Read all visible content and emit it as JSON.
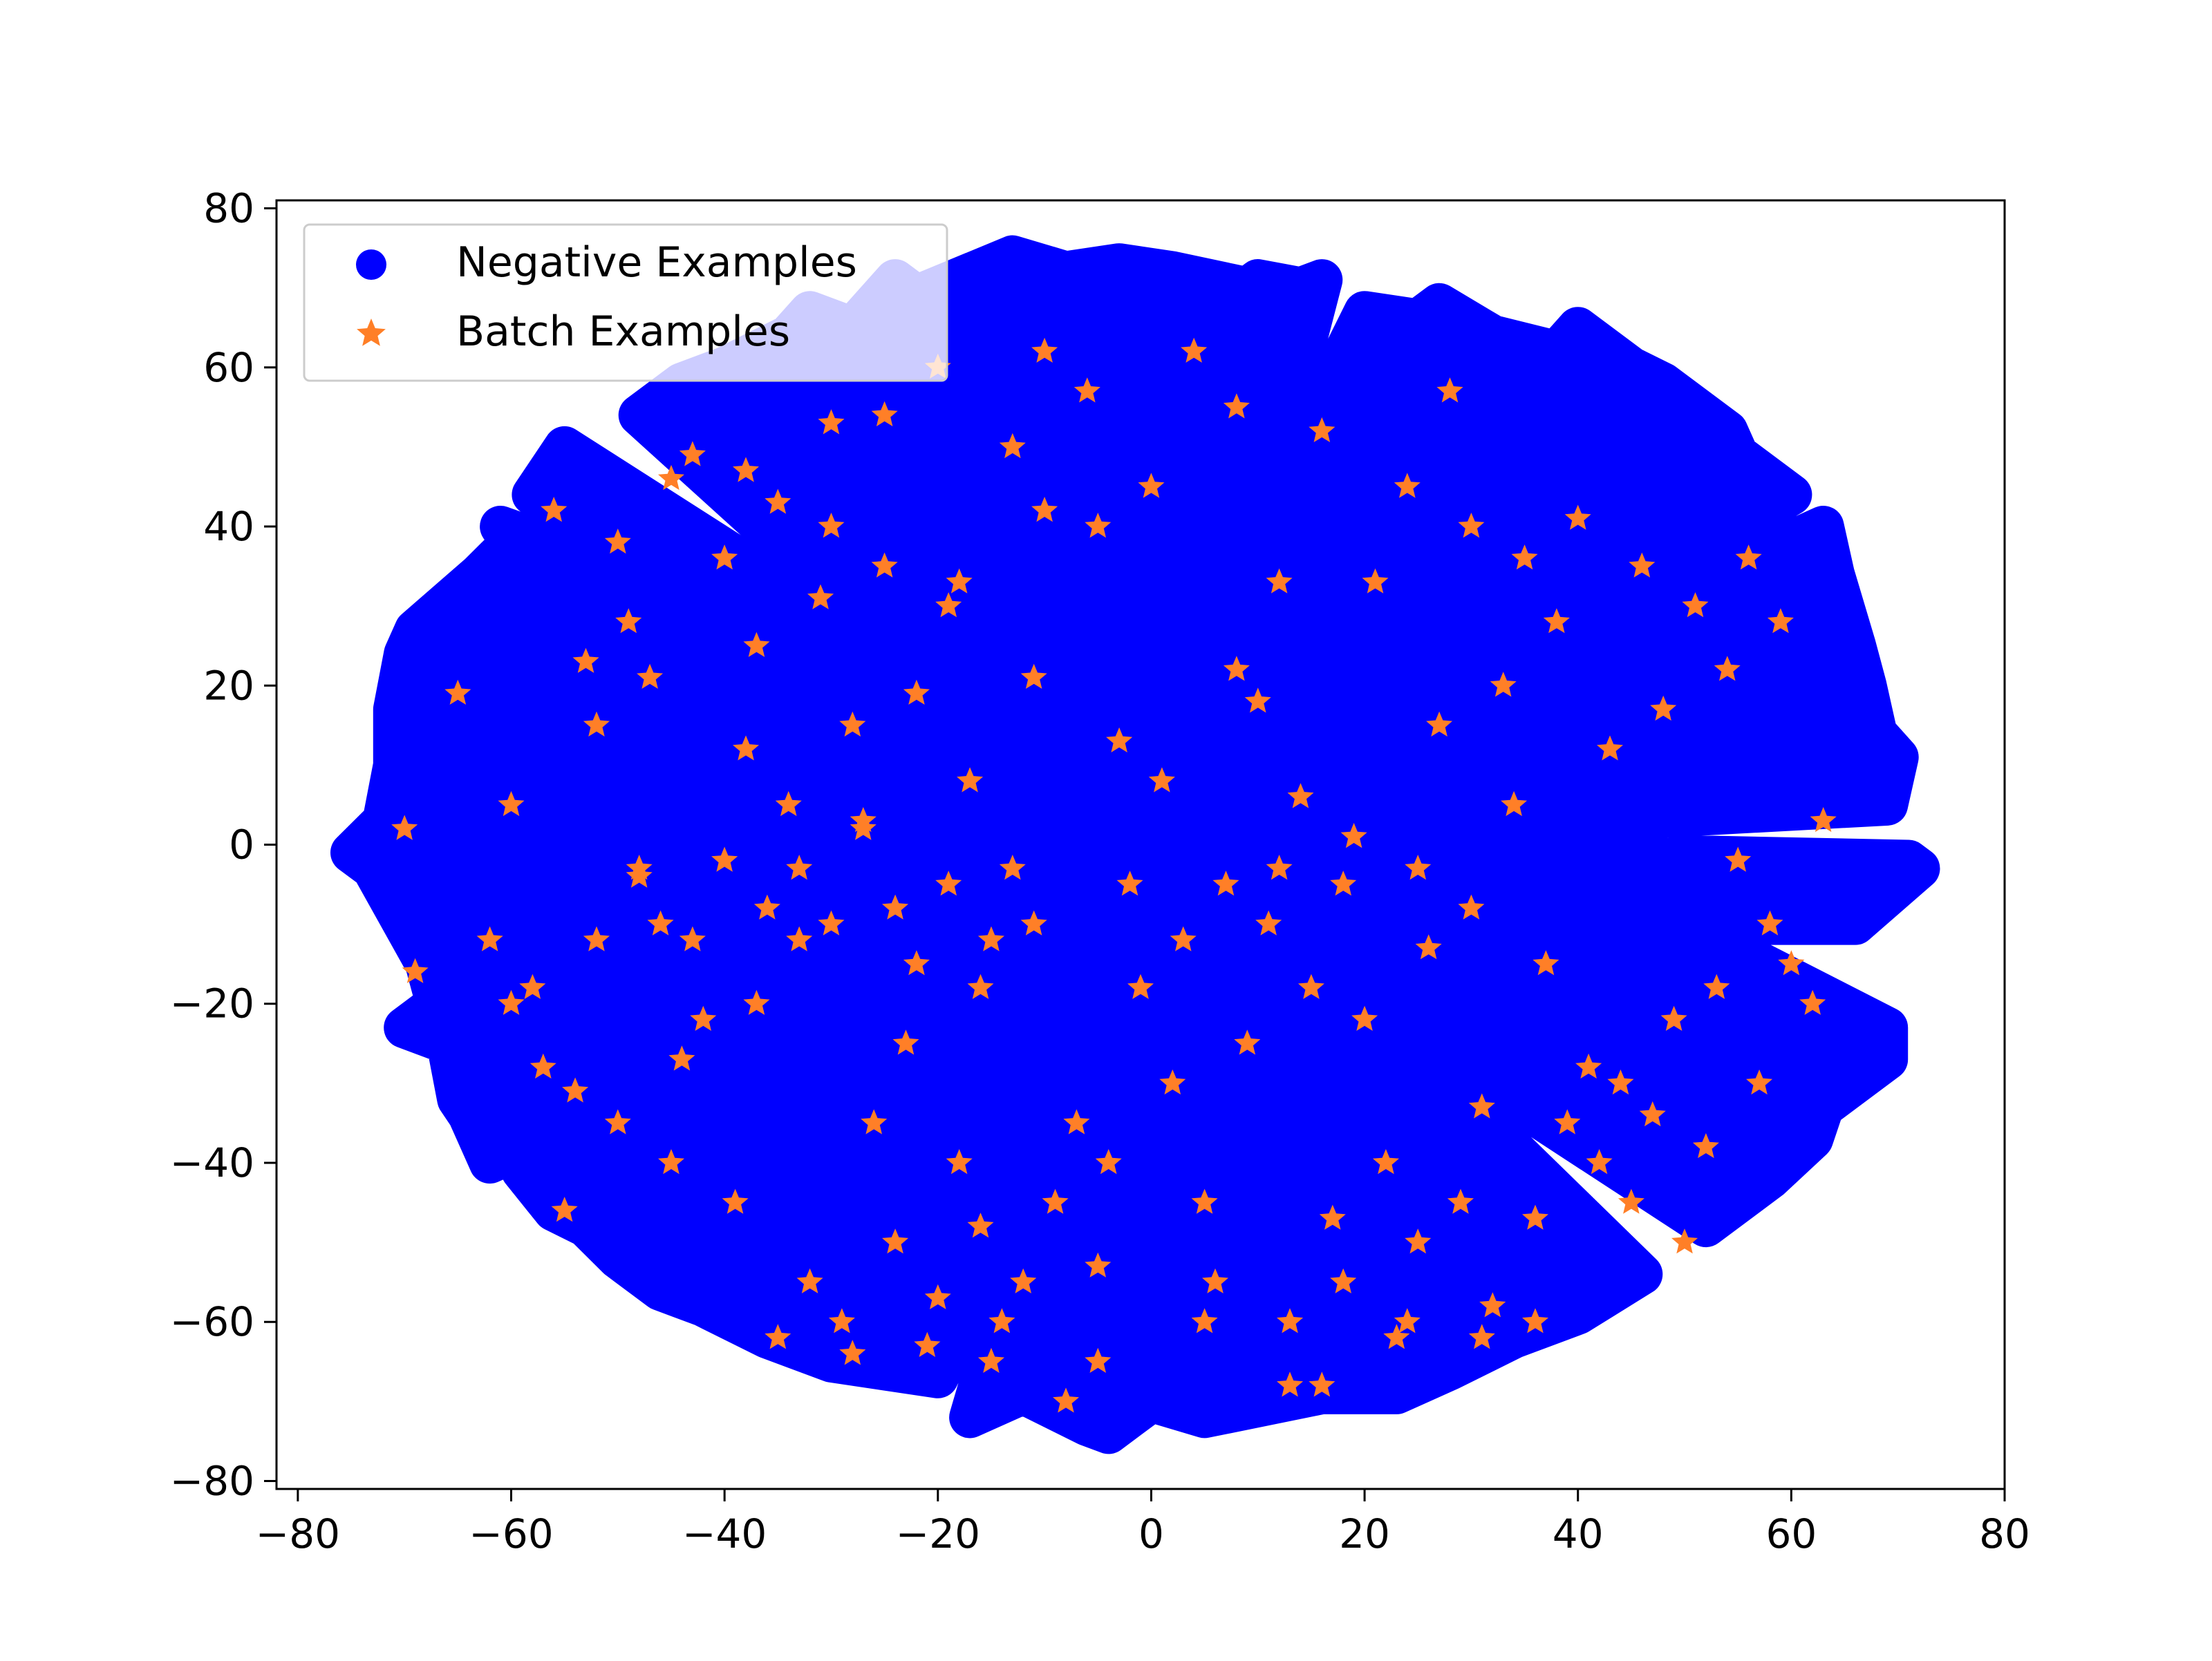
{
  "chart_data": {
    "type": "scatter",
    "title": "",
    "xlabel": "",
    "ylabel": "",
    "xlim": [
      -82,
      80
    ],
    "ylim": [
      -81,
      81
    ],
    "xticks": [
      -80,
      -60,
      -40,
      -20,
      0,
      20,
      40,
      60,
      80
    ],
    "yticks": [
      -80,
      -60,
      -40,
      -20,
      0,
      20,
      40,
      60,
      80
    ],
    "xtick_labels": [
      "−80",
      "−60",
      "−40",
      "−20",
      "0",
      "20",
      "40",
      "60",
      "80"
    ],
    "ytick_labels": [
      "−80",
      "−60",
      "−40",
      "−20",
      "0",
      "20",
      "40",
      "60",
      "80"
    ],
    "grid": false,
    "legend": {
      "position": "upper-left",
      "entries": [
        {
          "label": "Negative Examples",
          "marker": "circle",
          "color": "#0000ff"
        },
        {
          "label": "Batch Examples",
          "marker": "star",
          "color": "#ff7f27"
        }
      ]
    },
    "series": [
      {
        "name": "Negative Examples",
        "marker": "circle",
        "color": "#0000ff",
        "points": [
          [
            -75,
            -1
          ],
          [
            -74,
            -2
          ],
          [
            -73,
            -3
          ],
          [
            -72,
            3
          ],
          [
            -71,
            10
          ],
          [
            -71,
            17
          ],
          [
            -70,
            -23
          ],
          [
            -70,
            24
          ],
          [
            -69,
            27
          ],
          [
            -68,
            -15
          ],
          [
            -67,
            -20
          ],
          [
            -66,
            -25
          ],
          [
            -65,
            -32
          ],
          [
            -64,
            -34
          ],
          [
            -63,
            34
          ],
          [
            -62,
            -40
          ],
          [
            -61,
            40
          ],
          [
            -60,
            38
          ],
          [
            -59,
            -41
          ],
          [
            -58,
            44
          ],
          [
            -56,
            -46
          ],
          [
            -55,
            50
          ],
          [
            -53,
            -48
          ],
          [
            -50,
            -52
          ],
          [
            -48,
            54
          ],
          [
            -46,
            -56
          ],
          [
            -44,
            58
          ],
          [
            -42,
            -58
          ],
          [
            -40,
            60
          ],
          [
            -36,
            -62
          ],
          [
            -34,
            64
          ],
          [
            -32,
            67
          ],
          [
            -30,
            -65
          ],
          [
            -28,
            65
          ],
          [
            -24,
            71
          ],
          [
            -22,
            69
          ],
          [
            -20,
            -67
          ],
          [
            -17,
            -72
          ],
          [
            -13,
            74
          ],
          [
            -12,
            -69
          ],
          [
            -8,
            72
          ],
          [
            -6,
            -73
          ],
          [
            -4,
            -74
          ],
          [
            -3,
            73
          ],
          [
            0,
            -70
          ],
          [
            2,
            72
          ],
          [
            5,
            -72
          ],
          [
            9,
            70
          ],
          [
            10,
            71
          ],
          [
            14,
            70
          ],
          [
            16,
            71
          ],
          [
            20,
            67
          ],
          [
            23,
            -69
          ],
          [
            25,
            66
          ],
          [
            27,
            68
          ],
          [
            32,
            64
          ],
          [
            38,
            62
          ],
          [
            40,
            65
          ],
          [
            45,
            60
          ],
          [
            48,
            58
          ],
          [
            54,
            52
          ],
          [
            55,
            49
          ],
          [
            60,
            44
          ],
          [
            63,
            40
          ],
          [
            64,
            34
          ],
          [
            66,
            25
          ],
          [
            67,
            20
          ],
          [
            68,
            14
          ],
          [
            69,
            -23
          ],
          [
            69,
            -27
          ],
          [
            70,
            11
          ],
          [
            71,
            -2
          ],
          [
            72,
            -3
          ],
          [
            69,
            5
          ],
          [
            66,
            -10
          ],
          [
            63,
            -33
          ],
          [
            62,
            -37
          ],
          [
            58,
            -42
          ],
          [
            52,
            -48
          ],
          [
            46,
            -54
          ],
          [
            40,
            -59
          ],
          [
            34,
            -62
          ],
          [
            28,
            -66
          ],
          [
            16,
            -69
          ],
          [
            -45,
            -30
          ],
          [
            -30,
            -20
          ],
          [
            -20,
            20
          ],
          [
            0,
            0
          ],
          [
            20,
            -20
          ],
          [
            30,
            20
          ],
          [
            -10,
            -40
          ],
          [
            10,
            40
          ],
          [
            -40,
            30
          ],
          [
            50,
            -10
          ]
        ]
      },
      {
        "name": "Batch Examples",
        "marker": "star",
        "color": "#ff7f27",
        "points": [
          [
            -70,
            2
          ],
          [
            -69,
            -16
          ],
          [
            -65,
            19
          ],
          [
            -60,
            5
          ],
          [
            -58,
            -18
          ],
          [
            -55,
            -46
          ],
          [
            -54,
            -31
          ],
          [
            -53,
            23
          ],
          [
            -52,
            15
          ],
          [
            -50,
            -35
          ],
          [
            -49,
            28
          ],
          [
            -48,
            -4
          ],
          [
            -47,
            21
          ],
          [
            -46,
            -10
          ],
          [
            -45,
            -40
          ],
          [
            -44,
            -27
          ],
          [
            -43,
            49
          ],
          [
            -42,
            -22
          ],
          [
            -40,
            36
          ],
          [
            -39,
            -45
          ],
          [
            -38,
            12
          ],
          [
            -37,
            25
          ],
          [
            -36,
            -8
          ],
          [
            -35,
            43
          ],
          [
            -34,
            5
          ],
          [
            -33,
            -12
          ],
          [
            -32,
            -55
          ],
          [
            -31,
            31
          ],
          [
            -30,
            53
          ],
          [
            -29,
            -60
          ],
          [
            -28,
            15
          ],
          [
            -27,
            3
          ],
          [
            -26,
            -35
          ],
          [
            -25,
            54
          ],
          [
            -24,
            -50
          ],
          [
            -23,
            -25
          ],
          [
            -22,
            19
          ],
          [
            -21,
            -63
          ],
          [
            -20,
            60
          ],
          [
            -19,
            30
          ],
          [
            -18,
            -40
          ],
          [
            -17,
            8
          ],
          [
            -16,
            -48
          ],
          [
            -15,
            -12
          ],
          [
            -14,
            -60
          ],
          [
            -13,
            50
          ],
          [
            -12,
            -55
          ],
          [
            -11,
            21
          ],
          [
            -10,
            62
          ],
          [
            -9,
            -45
          ],
          [
            -8,
            -70
          ],
          [
            -7,
            -35
          ],
          [
            -6,
            57
          ],
          [
            -5,
            -53
          ],
          [
            -4,
            -40
          ],
          [
            -3,
            13
          ],
          [
            -2,
            -5
          ],
          [
            -1,
            -18
          ],
          [
            0,
            45
          ],
          [
            1,
            8
          ],
          [
            2,
            -30
          ],
          [
            3,
            -12
          ],
          [
            4,
            62
          ],
          [
            5,
            -45
          ],
          [
            6,
            -55
          ],
          [
            7,
            -5
          ],
          [
            8,
            22
          ],
          [
            9,
            -25
          ],
          [
            10,
            18
          ],
          [
            11,
            -10
          ],
          [
            12,
            33
          ],
          [
            13,
            -60
          ],
          [
            14,
            6
          ],
          [
            15,
            -18
          ],
          [
            16,
            52
          ],
          [
            17,
            -47
          ],
          [
            18,
            -55
          ],
          [
            19,
            1
          ],
          [
            20,
            -22
          ],
          [
            21,
            33
          ],
          [
            22,
            -40
          ],
          [
            23,
            -62
          ],
          [
            24,
            45
          ],
          [
            25,
            -50
          ],
          [
            26,
            -13
          ],
          [
            27,
            15
          ],
          [
            28,
            57
          ],
          [
            29,
            -45
          ],
          [
            30,
            40
          ],
          [
            31,
            -33
          ],
          [
            32,
            -58
          ],
          [
            33,
            20
          ],
          [
            34,
            5
          ],
          [
            35,
            36
          ],
          [
            36,
            -47
          ],
          [
            37,
            -15
          ],
          [
            38,
            28
          ],
          [
            39,
            -35
          ],
          [
            40,
            41
          ],
          [
            41,
            -28
          ],
          [
            42,
            -40
          ],
          [
            43,
            12
          ],
          [
            44,
            -30
          ],
          [
            45,
            -45
          ],
          [
            46,
            35
          ],
          [
            47,
            -34
          ],
          [
            48,
            17
          ],
          [
            49,
            -22
          ],
          [
            50,
            -50
          ],
          [
            51,
            30
          ],
          [
            52,
            -38
          ],
          [
            53,
            -18
          ],
          [
            54,
            22
          ],
          [
            55,
            -2
          ],
          [
            56,
            36
          ],
          [
            57,
            -30
          ],
          [
            58,
            -10
          ],
          [
            59,
            28
          ],
          [
            60,
            -15
          ],
          [
            62,
            -20
          ],
          [
            63,
            3
          ],
          [
            -35,
            -62
          ],
          [
            -28,
            -64
          ],
          [
            -20,
            -57
          ],
          [
            -15,
            -65
          ],
          [
            -5,
            -65
          ],
          [
            5,
            -60
          ],
          [
            13,
            -68
          ],
          [
            16,
            -68
          ],
          [
            24,
            -60
          ],
          [
            31,
            -62
          ],
          [
            36,
            -60
          ],
          [
            -56,
            42
          ],
          [
            -50,
            38
          ],
          [
            -45,
            46
          ],
          [
            -38,
            47
          ],
          [
            -30,
            40
          ],
          [
            -25,
            35
          ],
          [
            -18,
            33
          ],
          [
            -10,
            42
          ],
          [
            -5,
            40
          ],
          [
            8,
            55
          ],
          [
            12,
            -3
          ],
          [
            18,
            -5
          ],
          [
            25,
            -3
          ],
          [
            30,
            -8
          ],
          [
            -62,
            -12
          ],
          [
            -60,
            -20
          ],
          [
            -57,
            -28
          ],
          [
            -52,
            -12
          ],
          [
            -48,
            -3
          ],
          [
            -43,
            -12
          ],
          [
            -40,
            -2
          ],
          [
            -37,
            -20
          ],
          [
            -33,
            -3
          ],
          [
            -30,
            -10
          ],
          [
            -27,
            2
          ],
          [
            -24,
            -8
          ],
          [
            -22,
            -15
          ],
          [
            -19,
            -5
          ],
          [
            -16,
            -18
          ],
          [
            -13,
            -3
          ],
          [
            -11,
            -10
          ]
        ]
      }
    ]
  }
}
